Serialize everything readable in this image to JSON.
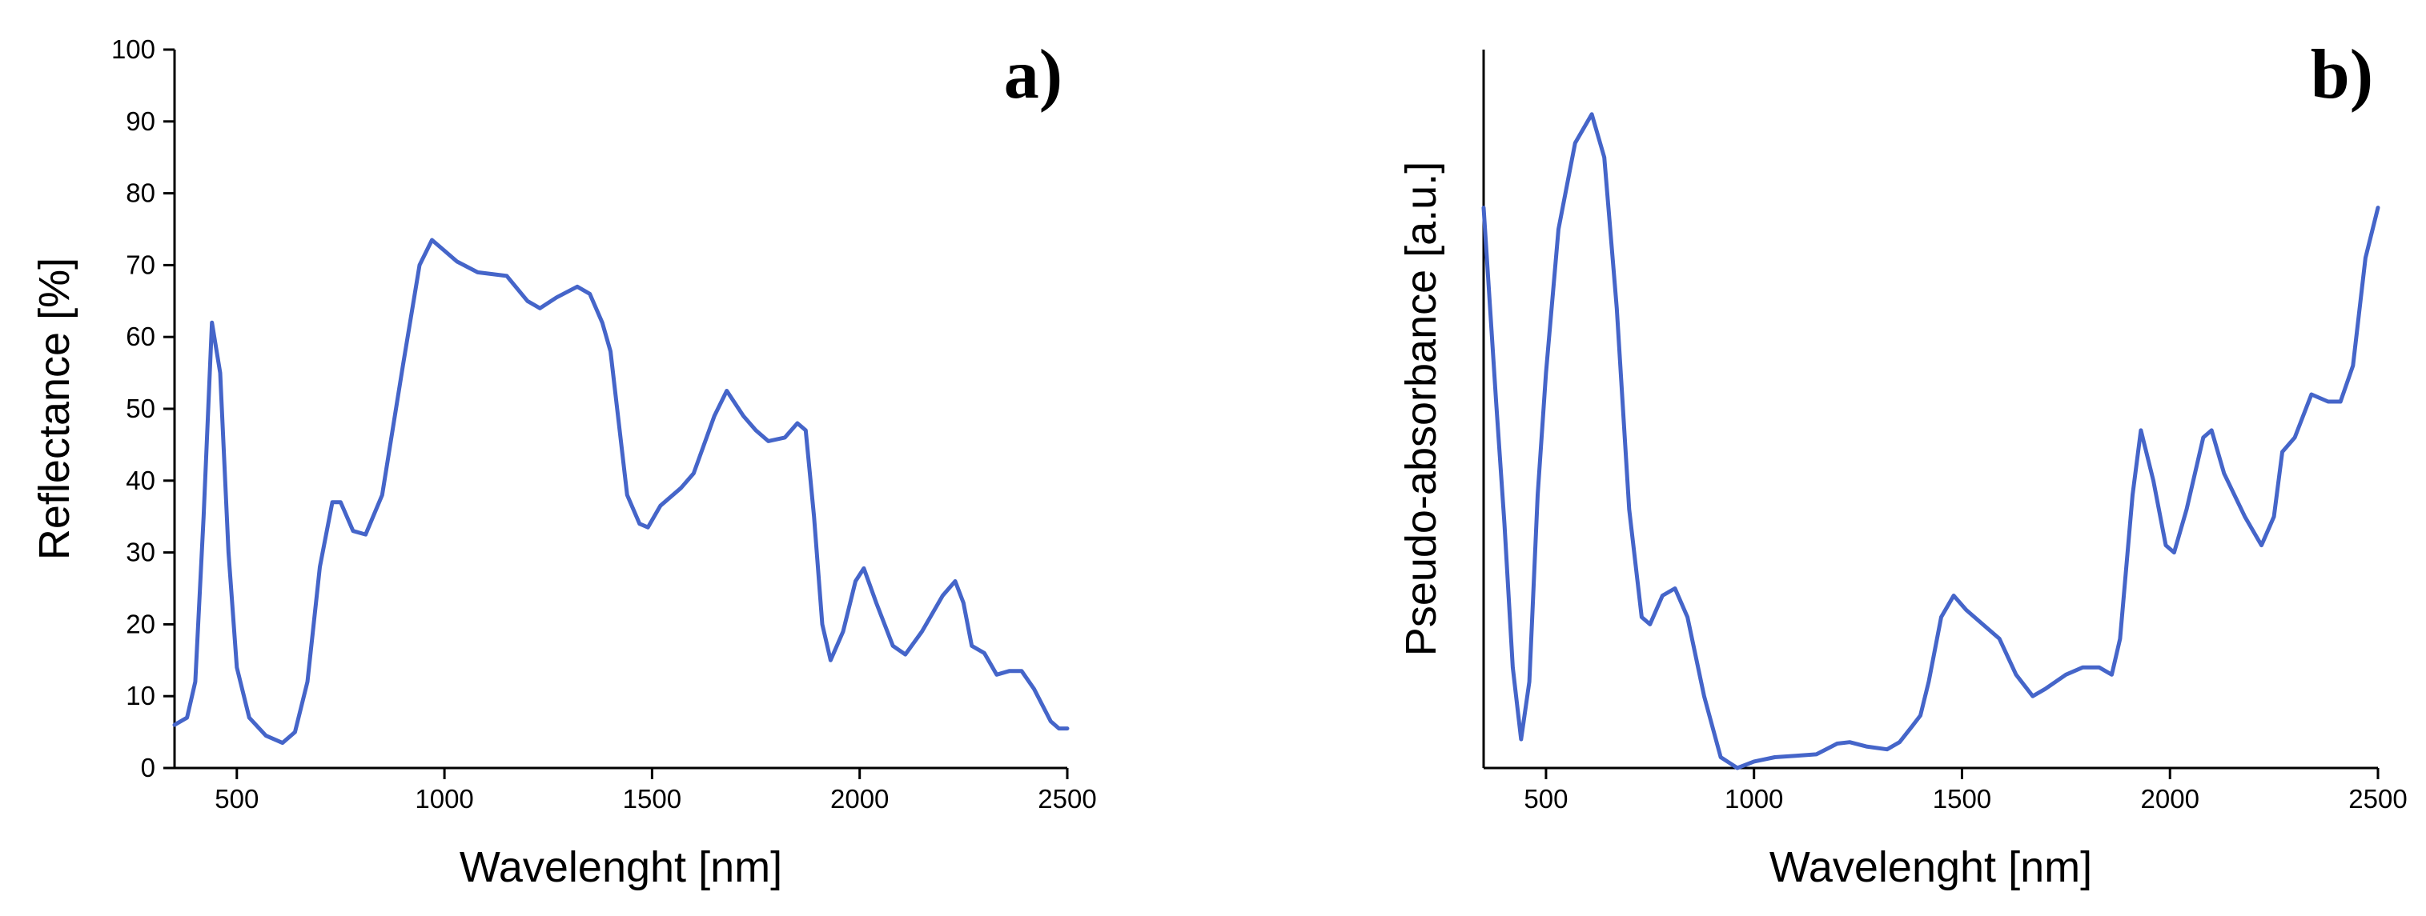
{
  "chart_data": [
    {
      "type": "line",
      "title": "a)",
      "x_label": "Wavelenght [nm]",
      "y_label": "Reflectance [%]",
      "xlim": [
        350,
        2500
      ],
      "xticks": [
        500,
        1000,
        1500,
        2000,
        2500
      ],
      "ylim": [
        0,
        100
      ],
      "yticks": [
        0,
        10,
        20,
        30,
        40,
        50,
        60,
        70,
        80,
        90,
        100
      ],
      "series": [
        {
          "name": "Reflectance",
          "color": "#4565c9",
          "x": [
            350,
            380,
            400,
            420,
            440,
            460,
            480,
            500,
            530,
            570,
            610,
            640,
            670,
            700,
            730,
            750,
            780,
            810,
            850,
            900,
            940,
            970,
            1000,
            1030,
            1080,
            1150,
            1200,
            1230,
            1270,
            1320,
            1350,
            1380,
            1400,
            1420,
            1440,
            1470,
            1490,
            1520,
            1570,
            1600,
            1650,
            1680,
            1720,
            1750,
            1780,
            1820,
            1850,
            1870,
            1890,
            1910,
            1930,
            1960,
            1990,
            2010,
            2040,
            2080,
            2110,
            2150,
            2200,
            2230,
            2250,
            2270,
            2300,
            2330,
            2360,
            2390,
            2420,
            2460,
            2480,
            2500
          ],
          "values": [
            6,
            7,
            12,
            35,
            62,
            55,
            30,
            14,
            7,
            4.5,
            3.5,
            5,
            12,
            28,
            37,
            37,
            33,
            32.5,
            38,
            56,
            70,
            73.5,
            72,
            70.5,
            69,
            68.5,
            65,
            64,
            65.5,
            67,
            66,
            62,
            58,
            48,
            38,
            34,
            33.5,
            36.5,
            39,
            41,
            49,
            52.5,
            49,
            47,
            45.5,
            46,
            48,
            47,
            35,
            20,
            15,
            19,
            26,
            27.8,
            23,
            17,
            15.8,
            19,
            24,
            26,
            23,
            17,
            16,
            13,
            13.5,
            13.5,
            11,
            6.5,
            5.5,
            5.5
          ]
        }
      ]
    },
    {
      "type": "line",
      "title": "b)",
      "x_label": "Wavelenght [nm]",
      "y_label": "Pseudo-absorbance [a.u.]",
      "xlim": [
        350,
        2500
      ],
      "xticks": [
        500,
        1000,
        1500,
        2000,
        2500
      ],
      "ylim": [
        0,
        1
      ],
      "series": [
        {
          "name": "Pseudo-absorbance",
          "color": "#4565c9",
          "x": [
            350,
            380,
            400,
            420,
            440,
            460,
            480,
            500,
            530,
            570,
            610,
            640,
            670,
            700,
            730,
            750,
            780,
            810,
            840,
            880,
            920,
            960,
            1000,
            1050,
            1100,
            1150,
            1200,
            1230,
            1270,
            1320,
            1350,
            1380,
            1400,
            1420,
            1450,
            1480,
            1510,
            1550,
            1590,
            1630,
            1670,
            1700,
            1750,
            1790,
            1830,
            1860,
            1880,
            1910,
            1930,
            1960,
            1990,
            2010,
            2040,
            2080,
            2100,
            2130,
            2180,
            2220,
            2250,
            2270,
            2300,
            2340,
            2380,
            2410,
            2440,
            2470,
            2500
          ],
          "values": [
            0.78,
            0.51,
            0.34,
            0.14,
            0.04,
            0.12,
            0.38,
            0.55,
            0.75,
            0.87,
            0.91,
            0.85,
            0.64,
            0.36,
            0.21,
            0.2,
            0.24,
            0.25,
            0.21,
            0.1,
            0.015,
            0,
            0.009,
            0.015,
            0.017,
            0.019,
            0.034,
            0.036,
            0.03,
            0.026,
            0.036,
            0.058,
            0.073,
            0.12,
            0.21,
            0.24,
            0.22,
            0.2,
            0.18,
            0.13,
            0.1,
            0.11,
            0.13,
            0.14,
            0.14,
            0.13,
            0.18,
            0.38,
            0.47,
            0.4,
            0.31,
            0.3,
            0.36,
            0.46,
            0.47,
            0.41,
            0.35,
            0.31,
            0.35,
            0.44,
            0.46,
            0.52,
            0.51,
            0.51,
            0.56,
            0.71,
            0.78
          ]
        }
      ]
    }
  ]
}
